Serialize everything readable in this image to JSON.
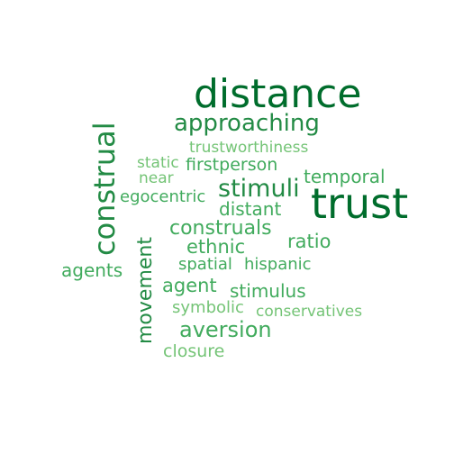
{
  "colors": {
    "dark_green": "#006d2c",
    "mid_green": "#238b45",
    "light_green": "#41ab5d",
    "pale_green": "#74c476"
  },
  "words": [
    {
      "text": "distance",
      "color": "#006d2c"
    },
    {
      "text": "trust",
      "color": "#006d2c"
    },
    {
      "text": "construal",
      "color": "#238b45"
    },
    {
      "text": "approaching",
      "color": "#238b45"
    },
    {
      "text": "stimuli",
      "color": "#238b45"
    },
    {
      "text": "trustworthiness",
      "color": "#74c476"
    },
    {
      "text": "static",
      "color": "#74c476"
    },
    {
      "text": "firstperson",
      "color": "#41ab5d"
    },
    {
      "text": "temporal",
      "color": "#41ab5d"
    },
    {
      "text": "near",
      "color": "#74c476"
    },
    {
      "text": "egocentric",
      "color": "#41ab5d"
    },
    {
      "text": "distant",
      "color": "#41ab5d"
    },
    {
      "text": "construals",
      "color": "#41ab5d"
    },
    {
      "text": "ethnic",
      "color": "#41ab5d"
    },
    {
      "text": "ratio",
      "color": "#41ab5d"
    },
    {
      "text": "movement",
      "color": "#238b45"
    },
    {
      "text": "agents",
      "color": "#41ab5d"
    },
    {
      "text": "spatial",
      "color": "#41ab5d"
    },
    {
      "text": "hispanic",
      "color": "#41ab5d"
    },
    {
      "text": "agent",
      "color": "#41ab5d"
    },
    {
      "text": "stimulus",
      "color": "#41ab5d"
    },
    {
      "text": "symbolic",
      "color": "#74c476"
    },
    {
      "text": "conservatives",
      "color": "#74c476"
    },
    {
      "text": "aversion",
      "color": "#41ab5d"
    },
    {
      "text": "closure",
      "color": "#74c476"
    }
  ]
}
